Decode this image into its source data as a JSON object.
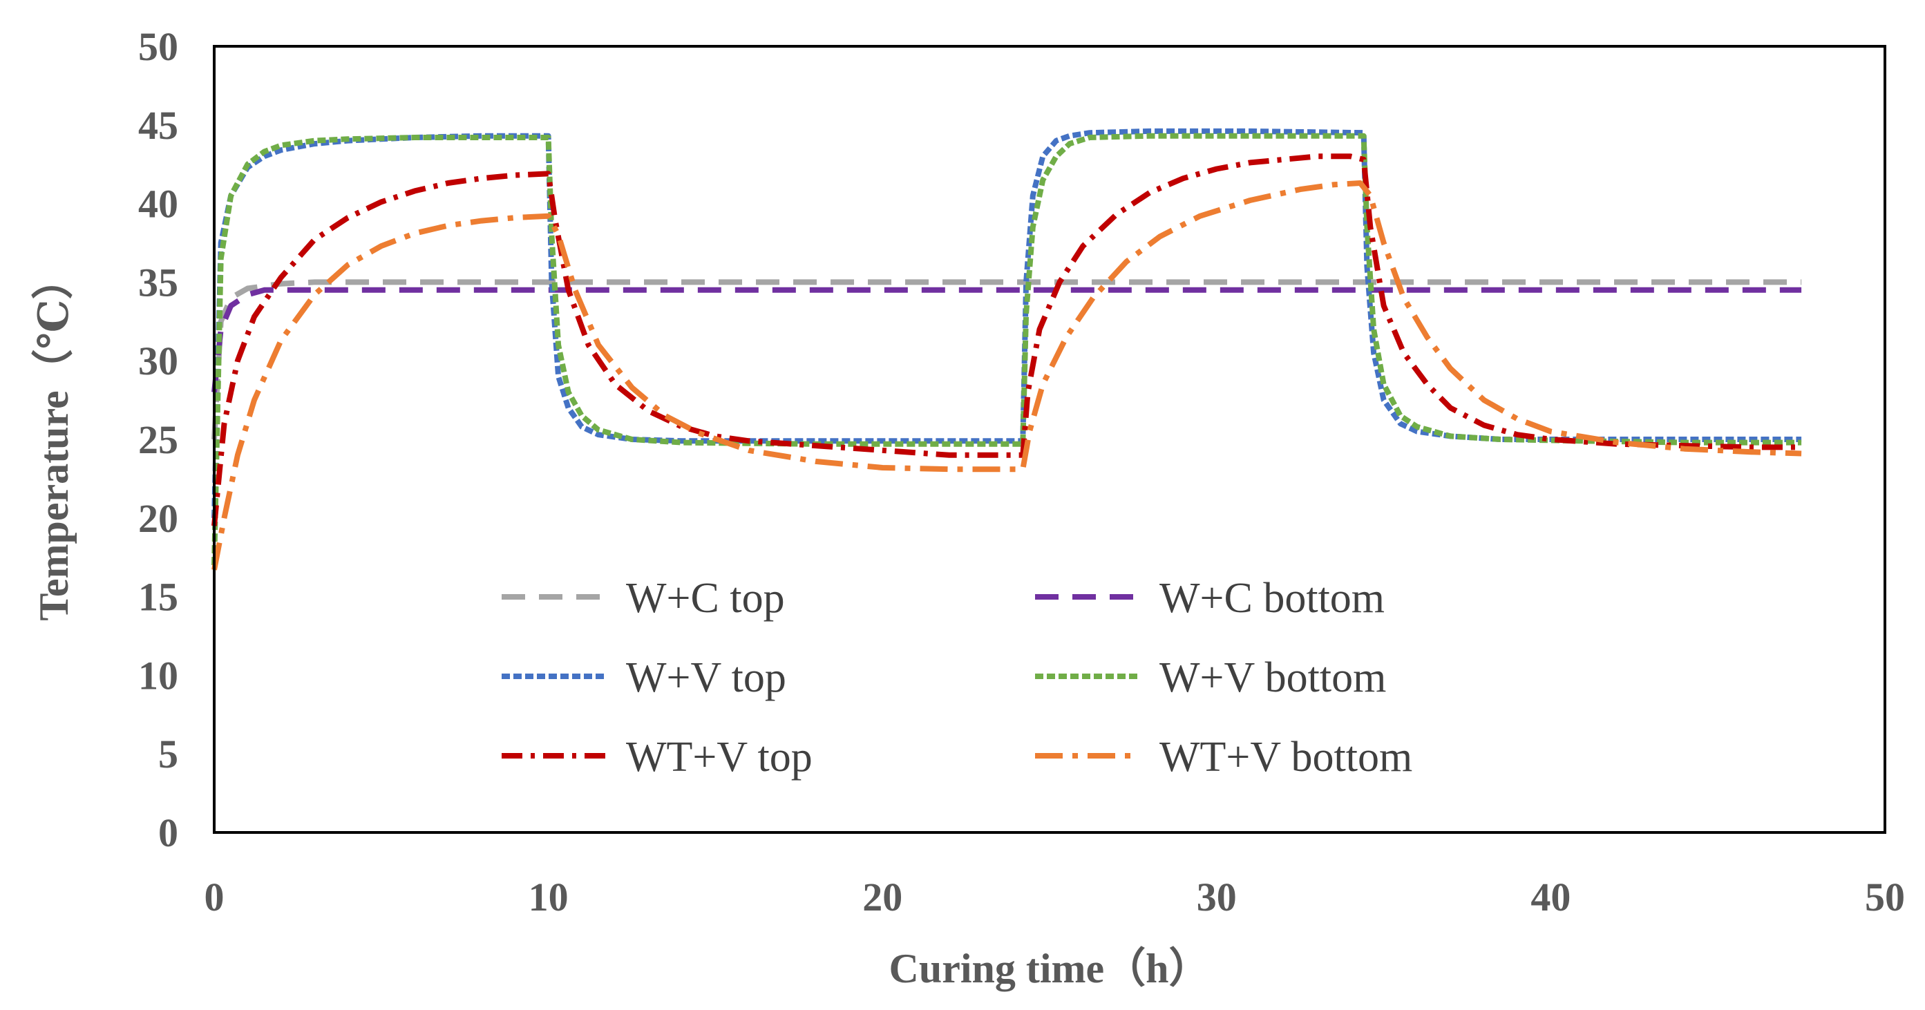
{
  "chart_data": {
    "type": "line",
    "title": "",
    "xlabel": "Curing time（h）",
    "ylabel": "Temperature（℃）",
    "xlim": [
      0,
      50
    ],
    "ylim": [
      0,
      50
    ],
    "x_ticks": [
      "0",
      "10",
      "20",
      "30",
      "40",
      "50"
    ],
    "y_ticks": [
      "0",
      "5",
      "10",
      "15",
      "20",
      "25",
      "30",
      "35",
      "40",
      "45",
      "50"
    ],
    "grid": false,
    "legend_position": "inside-lower-center",
    "series": [
      {
        "name": "W+C top",
        "color": "#A5A5A5",
        "dash": "long-dash",
        "x": [
          0,
          0.2,
          0.5,
          1.0,
          2.0,
          3.0,
          10,
          20,
          30,
          40,
          47.5
        ],
        "y": [
          25,
          32.5,
          34.0,
          34.6,
          34.9,
          35,
          35,
          35,
          35,
          35,
          35
        ]
      },
      {
        "name": "W+C bottom",
        "color": "#7030A0",
        "dash": "long-dash",
        "x": [
          0,
          0.2,
          0.5,
          1.0,
          1.5,
          2.0,
          10,
          20,
          30,
          40,
          47.5
        ],
        "y": [
          28,
          32.0,
          33.5,
          34.2,
          34.5,
          34.5,
          34.5,
          34.5,
          34.5,
          34.5,
          34.5
        ]
      },
      {
        "name": "W+V top",
        "color": "#4472C4",
        "dash": "dense-dash",
        "x": [
          0,
          0.2,
          0.5,
          1.0,
          1.5,
          2.0,
          3.0,
          4.0,
          6.0,
          8.0,
          10.0,
          10.1,
          10.3,
          10.6,
          11.0,
          11.5,
          12.5,
          14.0,
          18.0,
          24.2,
          24.3,
          24.5,
          24.8,
          25.2,
          25.6,
          26.2,
          28.0,
          31.0,
          34.4,
          34.5,
          34.7,
          35.0,
          35.5,
          36.0,
          37.0,
          38.5,
          41.0,
          44.0,
          47.5
        ],
        "y": [
          20,
          37.5,
          40.5,
          42.3,
          43.0,
          43.4,
          43.8,
          44.0,
          44.2,
          44.3,
          44.3,
          35.0,
          29.0,
          27.0,
          25.8,
          25.3,
          25.0,
          24.9,
          24.9,
          24.9,
          35.0,
          40.5,
          43.0,
          44.0,
          44.3,
          44.5,
          44.6,
          44.6,
          44.5,
          36.0,
          30.5,
          27.5,
          26.0,
          25.5,
          25.2,
          25.0,
          25.0,
          25.0,
          25.0
        ]
      },
      {
        "name": "W+V bottom",
        "color": "#70AD47",
        "dash": "dense-dash",
        "x": [
          0,
          0.2,
          0.5,
          1.0,
          1.5,
          2.0,
          3.0,
          4.0,
          6.0,
          8.0,
          10.0,
          10.1,
          10.3,
          10.6,
          11.0,
          11.5,
          12.5,
          14.0,
          18.0,
          24.2,
          24.3,
          24.5,
          24.8,
          25.2,
          25.6,
          26.2,
          28.0,
          31.0,
          34.4,
          34.5,
          34.7,
          35.0,
          35.5,
          36.0,
          37.0,
          38.5,
          41.0,
          44.0,
          47.5
        ],
        "y": [
          17.0,
          36.5,
          40.5,
          42.5,
          43.3,
          43.7,
          44.0,
          44.1,
          44.2,
          44.2,
          44.2,
          38.0,
          31.0,
          28.0,
          26.5,
          25.6,
          25.0,
          24.8,
          24.7,
          24.7,
          33.0,
          38.5,
          41.5,
          43.0,
          43.8,
          44.2,
          44.3,
          44.3,
          44.3,
          38.5,
          32.0,
          28.5,
          26.5,
          25.8,
          25.2,
          25.0,
          24.9,
          24.8,
          24.8
        ]
      },
      {
        "name": "WT+V top",
        "color": "#C00000",
        "dash": "dash-dot",
        "x": [
          0,
          0.3,
          0.7,
          1.2,
          2.0,
          3.0,
          4.0,
          5.0,
          6.0,
          7.0,
          8.0,
          9.0,
          10.0,
          10.2,
          10.6,
          11.2,
          12.0,
          13.0,
          14.0,
          15.0,
          16.0,
          18.0,
          20.0,
          22.0,
          24.2,
          24.35,
          24.7,
          25.3,
          26.0,
          27.0,
          28.0,
          29.0,
          30.0,
          31.0,
          32.0,
          33.0,
          34.0,
          34.4,
          34.6,
          35.0,
          35.6,
          36.3,
          37.0,
          38.0,
          39.0,
          40.0,
          42.0,
          44.0,
          46.0,
          47.5
        ],
        "y": [
          19.5,
          26.0,
          30.0,
          32.8,
          35.3,
          37.7,
          39.1,
          40.1,
          40.8,
          41.3,
          41.6,
          41.8,
          41.9,
          39.0,
          34.5,
          31.0,
          28.5,
          26.8,
          25.8,
          25.2,
          24.9,
          24.6,
          24.3,
          24.0,
          24.0,
          28.0,
          32.0,
          35.0,
          37.3,
          39.3,
          40.7,
          41.6,
          42.2,
          42.6,
          42.8,
          43.0,
          43.0,
          42.8,
          38.5,
          33.5,
          30.5,
          28.5,
          27.0,
          25.9,
          25.3,
          25.0,
          24.7,
          24.6,
          24.5,
          24.5
        ]
      },
      {
        "name": "WT+V bottom",
        "color": "#ED7D31",
        "dash": "long-dash-dot",
        "x": [
          0,
          0.3,
          0.7,
          1.2,
          2.0,
          3.0,
          4.0,
          5.0,
          6.0,
          7.0,
          8.0,
          9.0,
          10.0,
          10.3,
          10.8,
          11.5,
          12.5,
          13.5,
          14.5,
          16.0,
          18.0,
          20.0,
          22.0,
          24.2,
          24.4,
          24.8,
          25.5,
          26.3,
          27.3,
          28.3,
          29.5,
          31.0,
          32.5,
          33.5,
          34.3,
          34.6,
          35.0,
          35.6,
          36.3,
          37.0,
          38.0,
          39.0,
          40.0,
          42.0,
          44.0,
          46.0,
          47.5
        ],
        "y": [
          16.7,
          20.0,
          24.0,
          27.5,
          31.3,
          34.2,
          36.1,
          37.3,
          38.1,
          38.6,
          38.9,
          39.1,
          39.2,
          38.0,
          34.5,
          31.0,
          28.3,
          26.5,
          25.4,
          24.3,
          23.6,
          23.2,
          23.1,
          23.1,
          25.5,
          28.5,
          31.5,
          34.0,
          36.3,
          37.9,
          39.2,
          40.2,
          40.9,
          41.2,
          41.3,
          40.5,
          37.5,
          34.0,
          31.5,
          29.5,
          27.5,
          26.3,
          25.5,
          24.8,
          24.4,
          24.2,
          24.1
        ]
      }
    ]
  }
}
